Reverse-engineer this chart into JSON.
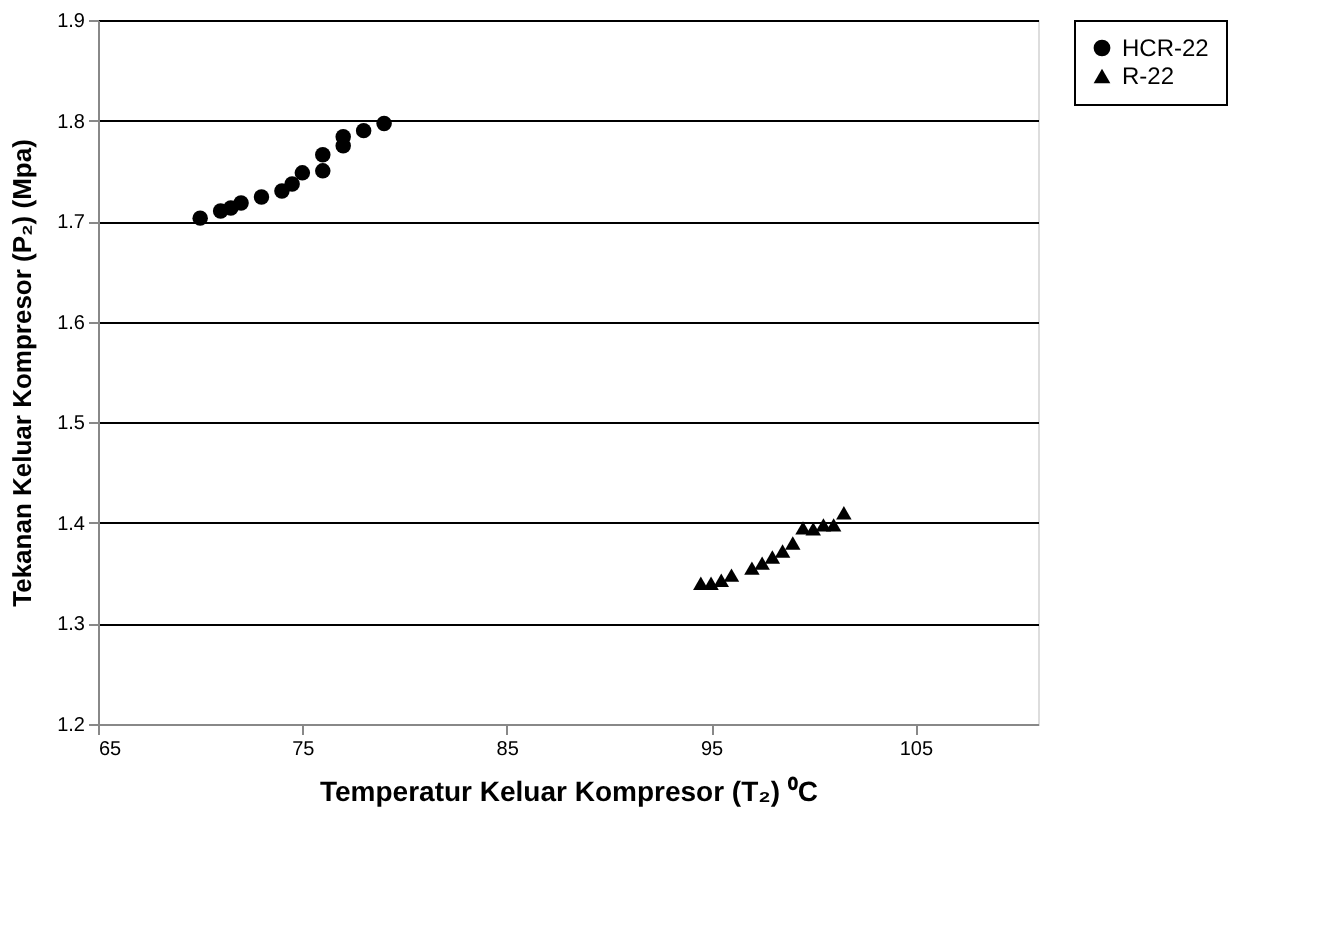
{
  "chart_data": {
    "type": "scatter",
    "xlabel": "Temperatur Keluar Kompresor (T₂) ⁰C",
    "ylabel": "Tekanan Keluar Kompresor (P₂) (Mpa)",
    "xlim": [
      65,
      111
    ],
    "xticks": [
      65,
      75,
      85,
      95,
      105
    ],
    "ylim": [
      1.2,
      1.9
    ],
    "yticks": [
      1.2,
      1.3,
      1.4,
      1.5,
      1.6,
      1.7,
      1.8,
      1.9
    ],
    "grid": "y",
    "legend": "right",
    "series": [
      {
        "name": "HCR-22",
        "color": "#000000",
        "marker": "circle",
        "x": [
          70,
          71,
          71.5,
          72,
          73,
          74,
          74.5,
          75,
          76,
          76,
          77,
          77,
          78,
          79
        ],
        "values": [
          1.703,
          1.71,
          1.713,
          1.718,
          1.724,
          1.73,
          1.737,
          1.748,
          1.75,
          1.766,
          1.775,
          1.784,
          1.79,
          1.797
        ]
      },
      {
        "name": "R-22",
        "color": "#000000",
        "marker": "triangle",
        "x": [
          94.5,
          95,
          95.5,
          96,
          97,
          97.5,
          98,
          98.5,
          99,
          99.5,
          100,
          100.5,
          101,
          101.5
        ],
        "values": [
          1.34,
          1.34,
          1.343,
          1.348,
          1.355,
          1.36,
          1.366,
          1.372,
          1.38,
          1.395,
          1.394,
          1.398,
          1.398,
          1.41
        ]
      }
    ]
  }
}
